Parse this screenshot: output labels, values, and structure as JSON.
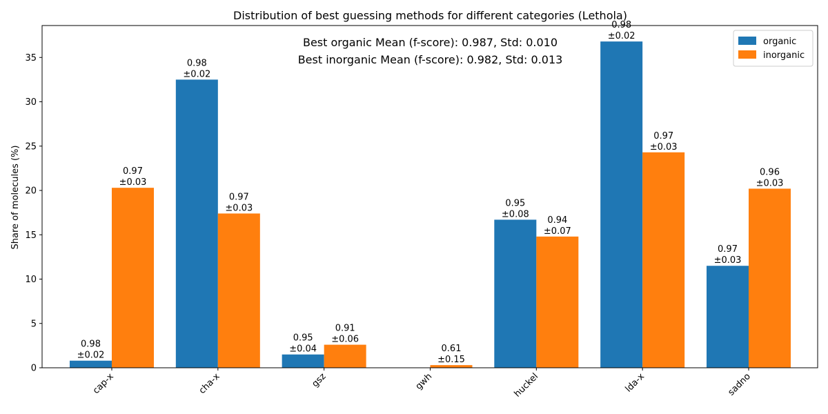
{
  "chart_data": {
    "type": "bar",
    "title": "Distribution of best guessing methods for different categories (Lethola)",
    "xlabel": "",
    "ylabel": "Share of molecules (%)",
    "ylim": [
      0,
      38.6
    ],
    "yticks": [
      0,
      5,
      10,
      15,
      20,
      25,
      30,
      35
    ],
    "grid": false,
    "legend_position": "upper-right",
    "categories": [
      "cap-x",
      "cha-x",
      "gsz",
      "gwh",
      "huckel",
      "lda-x",
      "sadno"
    ],
    "series": [
      {
        "name": "organic",
        "color": "#1f77b4",
        "values": [
          0.8,
          32.5,
          1.5,
          0,
          16.7,
          36.8,
          11.5
        ],
        "labels": [
          "0.98",
          "0.98",
          "0.95",
          "",
          "0.95",
          "0.98",
          "0.97"
        ],
        "std_labels": [
          "±0.02",
          "±0.02",
          "±0.04",
          "",
          "±0.08",
          "±0.02",
          "±0.03"
        ]
      },
      {
        "name": "inorganic",
        "color": "#ff7f0e",
        "values": [
          20.3,
          17.4,
          2.6,
          0.3,
          14.8,
          24.3,
          20.2
        ],
        "labels": [
          "0.97",
          "0.97",
          "0.91",
          "0.61",
          "0.94",
          "0.97",
          "0.96"
        ],
        "std_labels": [
          "±0.03",
          "±0.03",
          "±0.06",
          "±0.15",
          "±0.07",
          "±0.03",
          "±0.03"
        ]
      }
    ],
    "annotations": [
      "Best organic Mean (f-score): 0.987, Std: 0.010",
      "Best inorganic Mean (f-score): 0.982, Std: 0.013"
    ]
  }
}
